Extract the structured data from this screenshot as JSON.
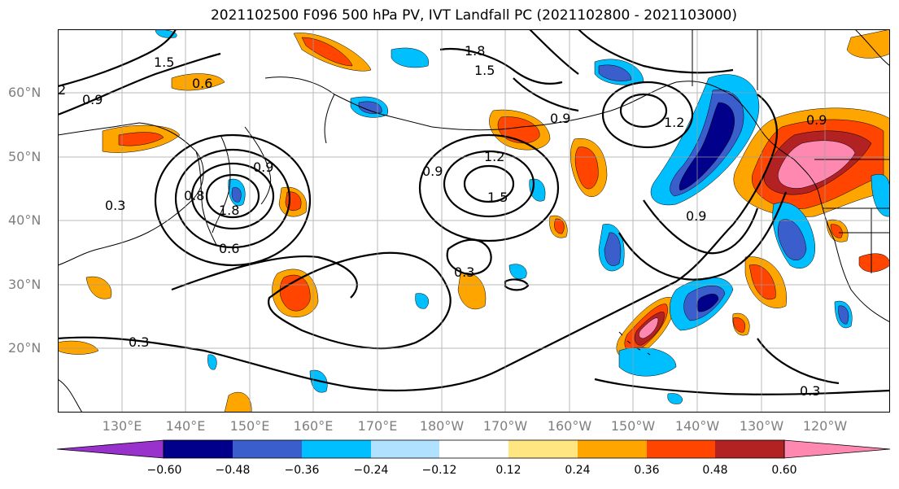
{
  "title": "2021102500 F096 500 hPa PV, IVT Landfall PC (2021102800 - 2021103000)",
  "lat_labels": [
    "60°N",
    "50°N",
    "40°N",
    "30°N",
    "20°N"
  ],
  "lon_labels": [
    "130°E",
    "140°E",
    "150°E",
    "160°E",
    "170°E",
    "180°W",
    "170°W",
    "160°W",
    "150°W",
    "140°W",
    "130°W",
    "120°W"
  ],
  "contour_labels": [
    "1.5",
    "0.6",
    "0.9",
    "2",
    "1.8",
    "1.5",
    "0.9",
    "1.2",
    "1.2",
    "0.9",
    "1.5",
    "0.9",
    "0.8",
    "0.3",
    "1.8",
    "0.6",
    "0.3",
    "0.3",
    "0.9",
    "0.9",
    "0.3"
  ],
  "colorbar": {
    "ticks": [
      "−0.60",
      "−0.48",
      "−0.36",
      "−0.24",
      "−0.12",
      "0.12",
      "0.24",
      "0.36",
      "0.48",
      "0.60"
    ],
    "colors": [
      "#9932cc",
      "#00008b",
      "#3a5fcd",
      "#00bfff",
      "#b0e2ff",
      "#ffffff",
      "#ffe680",
      "#ffa500",
      "#ff4500",
      "#b22222",
      "#ff88b0"
    ]
  }
}
